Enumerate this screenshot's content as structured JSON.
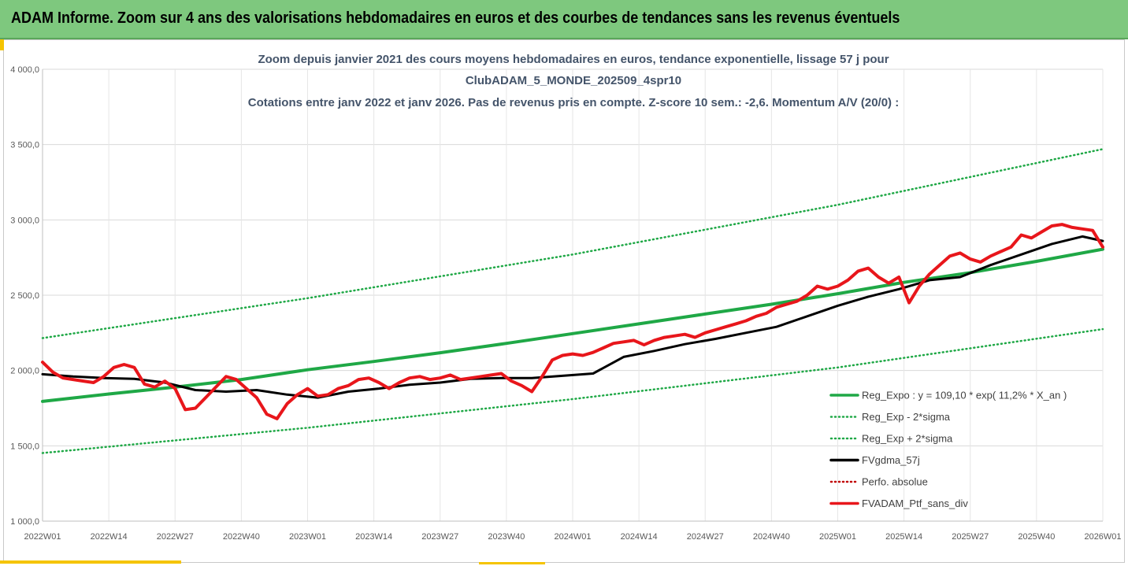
{
  "banner": {
    "title": "ADAM Informe. Zoom sur 4 ans des valorisations hebdomadaires en euros et des courbes de tendances sans les revenus éventuels"
  },
  "colors": {
    "banner_bg": "#7ec87e",
    "trend": "#1fa846",
    "smooth": "#000000",
    "portfolio": "#e8161b",
    "perf": "#c00000"
  },
  "chart_data": {
    "type": "line",
    "title_lines": [
      "Zoom depuis janvier 2021 des cours moyens hebdomadaires  en euros, tendance exponentielle, lissage 57 j pour",
      "ClubADAM_5_MONDE_202509_4spr10",
      "Cotations entre janv 2022 et janv 2026. Pas de revenus pris en compte. Z-score 10 sem.: -2,6. Momentum A/V (20/0) :"
    ],
    "x_ticks": [
      "2022W01",
      "2022W14",
      "2022W27",
      "2022W40",
      "2023W01",
      "2023W14",
      "2023W27",
      "2023W40",
      "2024W01",
      "2024W14",
      "2024W27",
      "2024W40",
      "2025W01",
      "2025W14",
      "2025W27",
      "2025W40",
      "2026W01"
    ],
    "y_ticks": [
      "1 000,0",
      "1 500,0",
      "2 000,0",
      "2 500,0",
      "3 000,0",
      "3 500,0",
      "4 000,0"
    ],
    "ylim": [
      1000,
      4000
    ],
    "x_domain_weeks": [
      0,
      208
    ],
    "grid": "horizontal",
    "legend_position": "bottom-right",
    "series": [
      {
        "name": "Reg_Expo : y = 109,10 * exp( 11,2% *  X_an )",
        "style": "solid",
        "color": "#1fa846",
        "x": [
          0,
          13,
          26,
          39,
          52,
          65,
          78,
          91,
          104,
          117,
          130,
          143,
          156,
          169,
          182,
          195,
          208
        ],
        "values": [
          1795,
          1844,
          1890,
          1940,
          2005,
          2060,
          2118,
          2180,
          2245,
          2310,
          2375,
          2440,
          2510,
          2585,
          2650,
          2725,
          2805
        ]
      },
      {
        "name": "Reg_Exp - 2*sigma",
        "style": "dotted",
        "color": "#1fa846",
        "x": [
          0,
          52,
          104,
          156,
          208
        ],
        "values": [
          1452,
          1620,
          1810,
          2020,
          2275
        ]
      },
      {
        "name": "Reg_Exp + 2*sigma",
        "style": "dotted",
        "color": "#1fa846",
        "x": [
          0,
          52,
          104,
          156,
          208
        ],
        "values": [
          2215,
          2480,
          2770,
          3100,
          3470
        ]
      },
      {
        "name": "FVgdma_57j",
        "style": "solid",
        "color": "#000000",
        "x": [
          0,
          6,
          12,
          18,
          24,
          30,
          36,
          42,
          48,
          54,
          60,
          66,
          72,
          78,
          84,
          90,
          96,
          102,
          108,
          114,
          120,
          126,
          132,
          138,
          144,
          150,
          156,
          162,
          168,
          174,
          180,
          186,
          192,
          198,
          204,
          208
        ],
        "values": [
          1975,
          1960,
          1950,
          1945,
          1920,
          1870,
          1860,
          1870,
          1840,
          1820,
          1860,
          1880,
          1905,
          1920,
          1945,
          1950,
          1950,
          1965,
          1980,
          2090,
          2130,
          2175,
          2210,
          2250,
          2290,
          2360,
          2430,
          2490,
          2540,
          2600,
          2620,
          2700,
          2770,
          2840,
          2890,
          2860
        ]
      },
      {
        "name": "Perfo. absolue",
        "style": "dotted",
        "color": "#c00000",
        "x": [],
        "values": []
      },
      {
        "name": "FVADAM_Ptf_sans_div",
        "style": "solid",
        "color": "#e8161b",
        "x": [
          0,
          2,
          4,
          6,
          8,
          10,
          12,
          14,
          16,
          18,
          20,
          22,
          24,
          26,
          28,
          30,
          32,
          34,
          36,
          38,
          40,
          42,
          44,
          46,
          48,
          50,
          52,
          54,
          56,
          58,
          60,
          62,
          64,
          66,
          68,
          70,
          72,
          74,
          76,
          78,
          80,
          82,
          84,
          86,
          88,
          90,
          92,
          94,
          96,
          98,
          100,
          102,
          104,
          106,
          108,
          110,
          112,
          114,
          116,
          118,
          120,
          122,
          124,
          126,
          128,
          130,
          132,
          134,
          136,
          138,
          140,
          142,
          144,
          146,
          148,
          150,
          152,
          154,
          156,
          158,
          160,
          162,
          164,
          166,
          168,
          170,
          172,
          174,
          176,
          178,
          180,
          182,
          184,
          186,
          188,
          190,
          192,
          194,
          196,
          198,
          200,
          202,
          204,
          206,
          208
        ],
        "values": [
          2055,
          1990,
          1950,
          1940,
          1930,
          1920,
          1960,
          2020,
          2040,
          2020,
          1910,
          1890,
          1930,
          1880,
          1740,
          1750,
          1820,
          1890,
          1960,
          1940,
          1880,
          1820,
          1710,
          1680,
          1780,
          1840,
          1880,
          1830,
          1840,
          1880,
          1900,
          1940,
          1950,
          1920,
          1880,
          1920,
          1950,
          1960,
          1940,
          1950,
          1970,
          1940,
          1950,
          1960,
          1970,
          1980,
          1930,
          1900,
          1860,
          1960,
          2070,
          2100,
          2110,
          2100,
          2120,
          2150,
          2180,
          2190,
          2200,
          2170,
          2200,
          2220,
          2230,
          2240,
          2220,
          2250,
          2270,
          2290,
          2310,
          2330,
          2360,
          2380,
          2420,
          2440,
          2460,
          2500,
          2560,
          2540,
          2560,
          2600,
          2660,
          2680,
          2620,
          2580,
          2620,
          2450,
          2560,
          2640,
          2700,
          2760,
          2780,
          2740,
          2720,
          2760,
          2790,
          2820,
          2900,
          2880,
          2920,
          2960,
          2970,
          2950,
          2940,
          2930,
          2820
        ]
      }
    ]
  }
}
